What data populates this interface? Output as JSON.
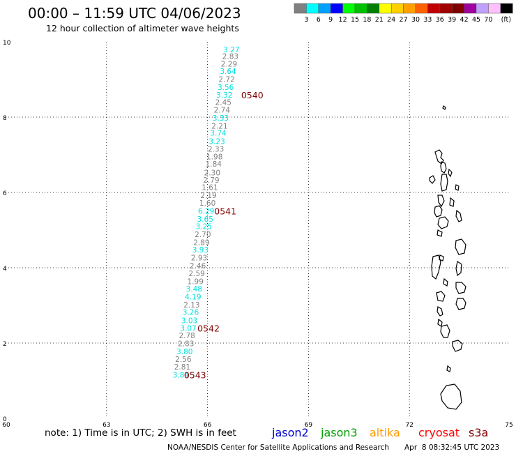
{
  "header": {
    "title": "00:00 – 11:59 UTC 04/06/2023",
    "subtitle": "12 hour collection of altimeter wave heights"
  },
  "legend": {
    "unit_label": "(ft)",
    "colors": [
      "#808080",
      "#00ffff",
      "#00a0ff",
      "#0000ff",
      "#00ff00",
      "#00c000",
      "#008000",
      "#ffff00",
      "#ffd000",
      "#ffa000",
      "#ff6000",
      "#c00000",
      "#a00000",
      "#800000",
      "#a000a0",
      "#c0a0ff",
      "#ffc0ff",
      "#000000"
    ],
    "labels": [
      "3",
      "6",
      "9",
      "12",
      "15",
      "18",
      "21",
      "24",
      "27",
      "30",
      "33",
      "36",
      "39",
      "42",
      "45",
      "70"
    ]
  },
  "footer": {
    "note": "note: 1) Time is in UTC; 2) SWH is in feet",
    "credit": "NOAA/NESDIS Center for Satellite Applications and Research",
    "timestamp": "Apr  8 08:32:45 UTC 2023",
    "satellites": [
      {
        "name": "jason2",
        "color": "#0000cc"
      },
      {
        "name": "jason3",
        "color": "#00a000"
      },
      {
        "name": "altika",
        "color": "#ff9900"
      },
      {
        "name": "cryosat",
        "color": "#ff0000"
      },
      {
        "name": "s3a",
        "color": "#800000"
      }
    ]
  },
  "chart_data": {
    "type": "scatter",
    "xlim": [
      60,
      75
    ],
    "ylim": [
      0,
      10
    ],
    "xticks": [
      "60",
      "63",
      "66",
      "69",
      "72",
      "75"
    ],
    "yticks": [
      "0",
      "2",
      "4",
      "6",
      "8",
      "10"
    ],
    "grid": true,
    "points": [
      {
        "lon": 66.71,
        "lat": 9.8,
        "value": "3.27",
        "color": "#00e0e0"
      },
      {
        "lon": 66.68,
        "lat": 9.62,
        "value": "2.83",
        "color": "#808080"
      },
      {
        "lon": 66.64,
        "lat": 9.42,
        "value": "2.29",
        "color": "#808080"
      },
      {
        "lon": 66.61,
        "lat": 9.22,
        "value": "3.64",
        "color": "#00e0e0"
      },
      {
        "lon": 66.57,
        "lat": 9.01,
        "value": "2.72",
        "color": "#808080"
      },
      {
        "lon": 66.54,
        "lat": 8.8,
        "value": "3.56",
        "color": "#00e0e0"
      },
      {
        "lon": 66.5,
        "lat": 8.59,
        "value": "3.32",
        "color": "#00e0e0"
      },
      {
        "lon": 66.47,
        "lat": 8.4,
        "value": "2.45",
        "color": "#808080"
      },
      {
        "lon": 66.43,
        "lat": 8.19,
        "value": "2.74",
        "color": "#808080"
      },
      {
        "lon": 66.39,
        "lat": 7.98,
        "value": "3.33",
        "color": "#00e0e0"
      },
      {
        "lon": 66.36,
        "lat": 7.77,
        "value": "2.21",
        "color": "#808080"
      },
      {
        "lon": 66.32,
        "lat": 7.58,
        "value": "3.74",
        "color": "#00e0e0"
      },
      {
        "lon": 66.28,
        "lat": 7.36,
        "value": "3.23",
        "color": "#00e0e0"
      },
      {
        "lon": 66.25,
        "lat": 7.16,
        "value": "2.33",
        "color": "#808080"
      },
      {
        "lon": 66.21,
        "lat": 6.95,
        "value": "1.98",
        "color": "#808080"
      },
      {
        "lon": 66.18,
        "lat": 6.76,
        "value": "1.84",
        "color": "#808080"
      },
      {
        "lon": 66.14,
        "lat": 6.53,
        "value": "2.30",
        "color": "#808080"
      },
      {
        "lon": 66.11,
        "lat": 6.33,
        "value": "2.79",
        "color": "#808080"
      },
      {
        "lon": 66.07,
        "lat": 6.14,
        "value": "1.61",
        "color": "#808080"
      },
      {
        "lon": 66.03,
        "lat": 5.93,
        "value": "2.19",
        "color": "#808080"
      },
      {
        "lon": 66.0,
        "lat": 5.72,
        "value": "1.60",
        "color": "#808080"
      },
      {
        "lon": 65.96,
        "lat": 5.51,
        "value": "6.29",
        "color": "#00e0e0"
      },
      {
        "lon": 65.93,
        "lat": 5.3,
        "value": "3.65",
        "color": "#00e0e0"
      },
      {
        "lon": 65.89,
        "lat": 5.1,
        "value": "3.25",
        "color": "#00e0e0"
      },
      {
        "lon": 65.86,
        "lat": 4.89,
        "value": "2.70",
        "color": "#808080"
      },
      {
        "lon": 65.82,
        "lat": 4.68,
        "value": "2.89",
        "color": "#808080"
      },
      {
        "lon": 65.79,
        "lat": 4.48,
        "value": "3.93",
        "color": "#00e0e0"
      },
      {
        "lon": 65.75,
        "lat": 4.27,
        "value": "2.93",
        "color": "#808080"
      },
      {
        "lon": 65.71,
        "lat": 4.06,
        "value": "2.46",
        "color": "#808080"
      },
      {
        "lon": 65.68,
        "lat": 3.85,
        "value": "2.59",
        "color": "#808080"
      },
      {
        "lon": 65.64,
        "lat": 3.64,
        "value": "1.99",
        "color": "#808080"
      },
      {
        "lon": 65.6,
        "lat": 3.44,
        "value": "3.48",
        "color": "#00e0e0"
      },
      {
        "lon": 65.57,
        "lat": 3.23,
        "value": "4.19",
        "color": "#00e0e0"
      },
      {
        "lon": 65.53,
        "lat": 3.02,
        "value": "2.13",
        "color": "#808080"
      },
      {
        "lon": 65.5,
        "lat": 2.82,
        "value": "3.26",
        "color": "#00e0e0"
      },
      {
        "lon": 65.46,
        "lat": 2.6,
        "value": "3.03",
        "color": "#00e0e0"
      },
      {
        "lon": 65.43,
        "lat": 2.4,
        "value": "3.07",
        "color": "#00e0e0"
      },
      {
        "lon": 65.39,
        "lat": 2.2,
        "value": "2.78",
        "color": "#808080"
      },
      {
        "lon": 65.36,
        "lat": 1.99,
        "value": "2.83",
        "color": "#808080"
      },
      {
        "lon": 65.32,
        "lat": 1.78,
        "value": "3.80",
        "color": "#00e0e0"
      },
      {
        "lon": 65.28,
        "lat": 1.57,
        "value": "2.56",
        "color": "#808080"
      },
      {
        "lon": 65.25,
        "lat": 1.37,
        "value": "2.81",
        "color": "#808080"
      },
      {
        "lon": 65.21,
        "lat": 1.16,
        "value": "3.84",
        "color": "#00e0e0"
      }
    ],
    "time_labels": [
      {
        "lon": 67.0,
        "lat": 8.59,
        "text": "0540"
      },
      {
        "lon": 66.2,
        "lat": 5.51,
        "text": "0541"
      },
      {
        "lon": 65.7,
        "lat": 2.4,
        "text": "0542"
      },
      {
        "lon": 65.3,
        "lat": 1.16,
        "text": "0543"
      }
    ]
  }
}
